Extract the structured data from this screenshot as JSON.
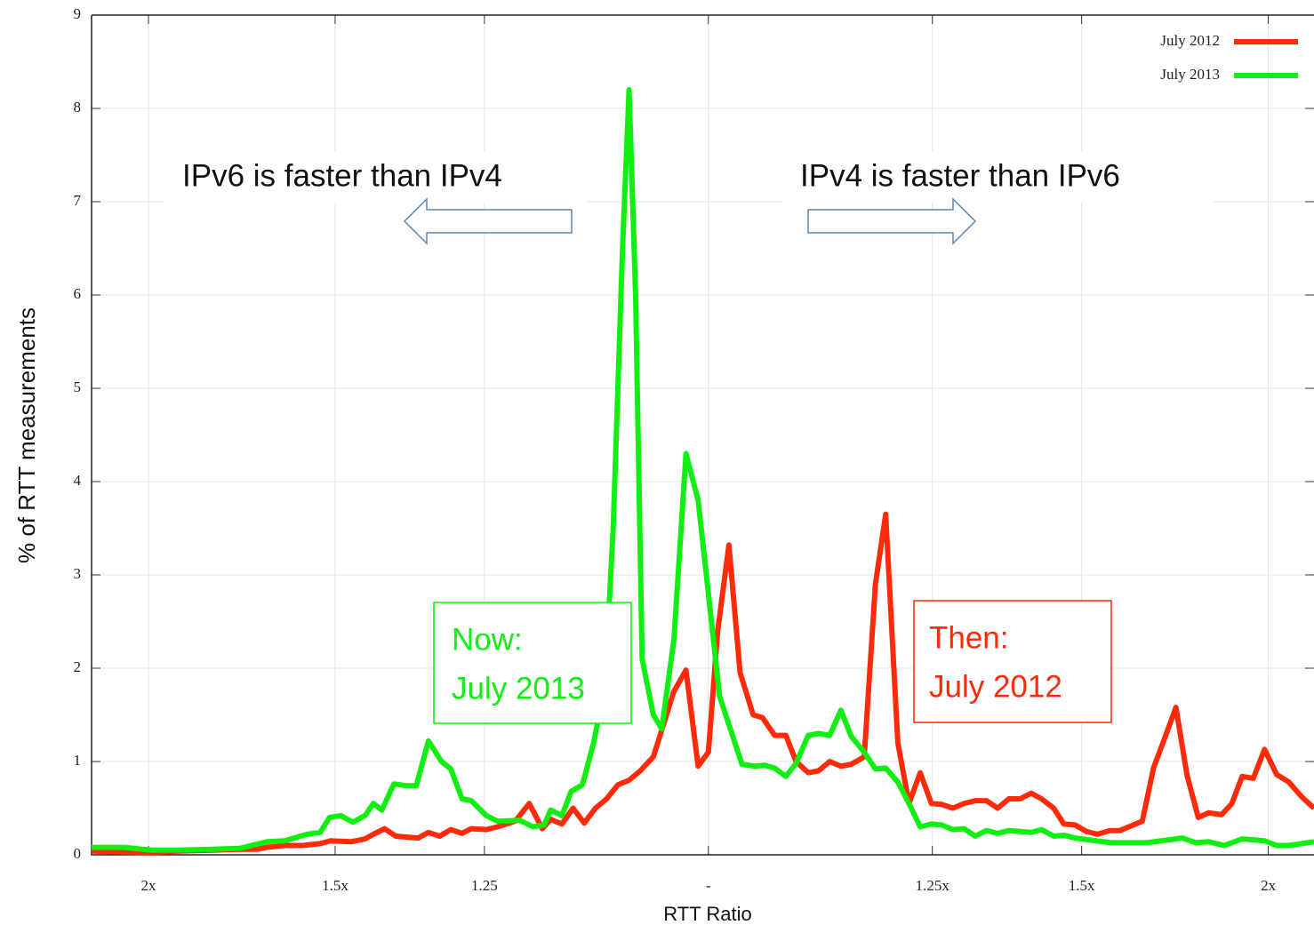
{
  "chart_data": {
    "type": "line",
    "xlabel": "RTT Ratio",
    "ylabel": "% of RTT measurements",
    "xlim": [
      -66.1,
      64.9
    ],
    "ylim": [
      0,
      9
    ],
    "xticks": [
      {
        "value": -60,
        "label": "2x"
      },
      {
        "value": -40,
        "label": "1.5x"
      },
      {
        "value": -24,
        "label": "1.25"
      },
      {
        "value": 0,
        "label": "-"
      },
      {
        "value": 24,
        "label": "1.25x"
      },
      {
        "value": 40,
        "label": "1.5x"
      },
      {
        "value": 60,
        "label": "2x"
      }
    ],
    "yticks": [
      0,
      1,
      2,
      3,
      4,
      5,
      6,
      7,
      8,
      9
    ],
    "grid": true,
    "legend": "upper right",
    "series": [
      {
        "name": "July 2012",
        "color": "#ff2a0a",
        "x": [
          -66.1,
          -62.6,
          -59.7,
          -56.9,
          -53,
          -50.2,
          -48.3,
          -47.3,
          -45.4,
          -43.5,
          -41.6,
          -40.5,
          -38.3,
          -36.8,
          -35.9,
          -34.7,
          -33.5,
          -31.1,
          -30,
          -28.8,
          -27.6,
          -26.4,
          -25.4,
          -23.8,
          -22.6,
          -20.7,
          -19.2,
          -17.8,
          -16.9,
          -15.7,
          -14.5,
          -13.3,
          -12.1,
          -10.9,
          -9.7,
          -8.5,
          -7.3,
          -5.9,
          -3.7,
          -2.4,
          -1.1,
          0,
          1,
          2.2,
          3.4,
          4.8,
          5.8,
          7.1,
          8.3,
          9.4,
          10.7,
          11.8,
          13,
          14.2,
          15.3,
          16.7,
          17.9,
          19,
          20.3,
          21.5,
          22.7,
          23.9,
          25,
          26.2,
          27.4,
          28.6,
          29.8,
          31,
          32.2,
          33.4,
          34.6,
          35.7,
          37,
          38.1,
          39.3,
          40.5,
          41.7,
          43,
          44.1,
          46.5,
          47.7,
          48.9,
          50.1,
          51.3,
          52.5,
          53.6,
          55,
          56.1,
          57.2,
          58.4,
          59.6,
          60.9,
          62.2,
          63.6,
          64.9
        ],
        "values": [
          0.04,
          0.03,
          0.02,
          0.04,
          0.05,
          0.06,
          0.06,
          0.08,
          0.1,
          0.1,
          0.12,
          0.15,
          0.14,
          0.17,
          0.22,
          0.28,
          0.2,
          0.18,
          0.24,
          0.2,
          0.27,
          0.23,
          0.28,
          0.27,
          0.3,
          0.36,
          0.55,
          0.28,
          0.38,
          0.33,
          0.5,
          0.34,
          0.5,
          0.6,
          0.75,
          0.8,
          0.9,
          1.05,
          1.75,
          1.98,
          0.95,
          1.1,
          2.4,
          3.32,
          1.95,
          1.5,
          1.47,
          1.28,
          1.28,
          1.0,
          0.88,
          0.9,
          1.0,
          0.95,
          0.97,
          1.05,
          2.9,
          3.65,
          1.2,
          0.55,
          0.88,
          0.55,
          0.54,
          0.5,
          0.55,
          0.58,
          0.58,
          0.5,
          0.6,
          0.6,
          0.66,
          0.6,
          0.5,
          0.33,
          0.32,
          0.25,
          0.22,
          0.26,
          0.26,
          0.36,
          0.93,
          1.25,
          1.58,
          0.85,
          0.4,
          0.45,
          0.43,
          0.55,
          0.84,
          0.82,
          1.13,
          0.86,
          0.78,
          0.62,
          0.5
        ]
      },
      {
        "name": "July 2013",
        "color": "#11ee11",
        "x": [
          -66.1,
          -62.6,
          -59.7,
          -56.9,
          -53,
          -50.2,
          -47.3,
          -45.4,
          -43,
          -41.6,
          -40.6,
          -39.4,
          -38.1,
          -36.8,
          -35.9,
          -35,
          -33.7,
          -32.3,
          -31.3,
          -30,
          -28.6,
          -27.6,
          -26.4,
          -25.4,
          -23.8,
          -22.6,
          -20.2,
          -18.8,
          -17.6,
          -16.9,
          -15.7,
          -14.7,
          -13.5,
          -12.3,
          -11.1,
          -10.2,
          -9.2,
          -8.5,
          -7.8,
          -7.1,
          -5.9,
          -5,
          -3.7,
          -2.4,
          -1.1,
          0,
          1.2,
          3.6,
          4.9,
          6,
          7.1,
          8.3,
          9.4,
          10.7,
          11.8,
          13,
          14.2,
          15.3,
          16.7,
          17.9,
          19,
          20.3,
          21.5,
          22.7,
          23.9,
          25,
          26.2,
          27.4,
          28.6,
          29.8,
          31,
          32.2,
          33.4,
          34.6,
          35.7,
          37,
          38.1,
          39.3,
          43.1,
          47,
          50.8,
          52.2,
          53.6,
          55.3,
          57.2,
          59.6,
          60.9,
          62.2,
          64.9
        ],
        "values": [
          0.08,
          0.08,
          0.05,
          0.05,
          0.06,
          0.07,
          0.14,
          0.15,
          0.22,
          0.24,
          0.4,
          0.42,
          0.35,
          0.42,
          0.55,
          0.48,
          0.76,
          0.74,
          0.74,
          1.22,
          1.0,
          0.92,
          0.6,
          0.58,
          0.42,
          0.36,
          0.37,
          0.3,
          0.32,
          0.48,
          0.42,
          0.68,
          0.75,
          1.2,
          1.8,
          3.5,
          6.5,
          8.2,
          6.0,
          2.1,
          1.5,
          1.35,
          2.3,
          4.3,
          3.8,
          2.8,
          1.7,
          0.97,
          0.95,
          0.96,
          0.93,
          0.84,
          0.98,
          1.28,
          1.3,
          1.28,
          1.55,
          1.27,
          1.1,
          0.92,
          0.93,
          0.78,
          0.55,
          0.3,
          0.33,
          0.32,
          0.27,
          0.28,
          0.2,
          0.26,
          0.23,
          0.26,
          0.25,
          0.24,
          0.27,
          0.2,
          0.21,
          0.18,
          0.13,
          0.13,
          0.18,
          0.13,
          0.14,
          0.1,
          0.17,
          0.15,
          0.1,
          0.1,
          0.14
        ]
      }
    ],
    "annotations": [
      {
        "text": "IPv6 is faster than IPv4"
      },
      {
        "text": "IPv4 is faster than IPv6"
      },
      {
        "lines": [
          "Now:",
          "July 2013"
        ],
        "color": "#11ee11"
      },
      {
        "lines": [
          "Then:",
          "July 2012"
        ],
        "color": "#ff2a0a"
      }
    ]
  }
}
